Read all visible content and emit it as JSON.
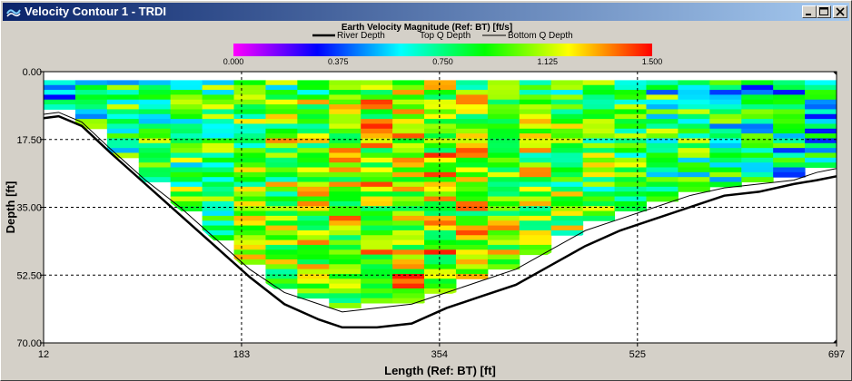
{
  "window": {
    "title": "Velocity Contour 1 - TRDI",
    "buttons": [
      "minimize",
      "maximize",
      "close"
    ]
  },
  "chart_data": {
    "type": "heatmap",
    "title": "Earth Velocity Magnitude (Ref: BT) [ft/s]",
    "xlabel": "Length (Ref: BT) [ft]",
    "ylabel": "Depth [ft]",
    "xlim": [
      12,
      697
    ],
    "ylim": [
      0,
      70
    ],
    "y_inverted": true,
    "x_ticks": [
      "12",
      "183",
      "354",
      "525",
      "697"
    ],
    "y_ticks": [
      "0.00",
      "17.50",
      "35.00",
      "52.50",
      "70.00"
    ],
    "grid": true,
    "colorbar": {
      "range": [
        0,
        1.5
      ],
      "ticks": [
        "0.000",
        "0.375",
        "0.750",
        "1.125",
        "1.500"
      ],
      "colormap": [
        "#ff00ff",
        "#0000ff",
        "#00ffff",
        "#00ff00",
        "#ffff00",
        "#ff0000"
      ]
    },
    "legend": {
      "position": "top",
      "entries": [
        "River Depth",
        "Top Q Depth",
        "Bottom Q Depth"
      ]
    },
    "river_depth": {
      "x": [
        12,
        25,
        45,
        70,
        100,
        130,
        160,
        190,
        220,
        250,
        270,
        300,
        330,
        360,
        390,
        420,
        450,
        480,
        510,
        540,
        570,
        600,
        630,
        660,
        680,
        697
      ],
      "y": [
        12,
        11.5,
        14,
        21,
        29,
        37,
        45,
        53,
        60,
        64,
        66,
        66,
        65,
        61,
        58,
        55,
        50,
        45,
        41,
        38,
        35,
        32,
        31,
        29,
        28,
        27
      ]
    },
    "bottom_q_depth": {
      "x": [
        12,
        25,
        45,
        70,
        100,
        130,
        160,
        190,
        220,
        250,
        270,
        300,
        330,
        360,
        390,
        420,
        450,
        480,
        510,
        540,
        570,
        600,
        630,
        660,
        680,
        697
      ],
      "y": [
        11,
        10.5,
        13,
        20,
        28,
        35,
        43,
        51,
        57,
        60,
        62,
        61,
        60,
        57,
        54,
        51,
        46,
        41,
        38,
        35,
        32,
        30,
        29,
        28,
        26,
        25
      ]
    },
    "top_q_depth": {
      "x": [
        12,
        697
      ],
      "y": [
        2.2,
        2.2
      ]
    }
  }
}
